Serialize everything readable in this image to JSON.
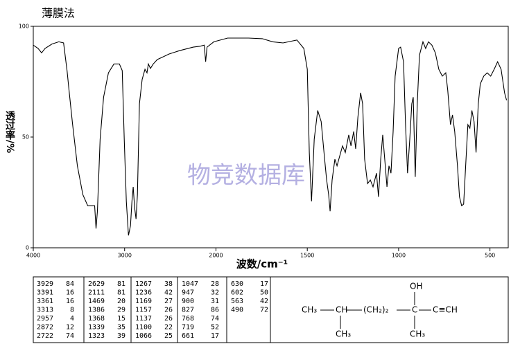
{
  "chart_data": {
    "type": "line",
    "title": "薄膜法",
    "ylabel": "透过率/%",
    "xlabel": "波数/cm⁻¹",
    "watermark": "物竞数据库",
    "xlim": [
      4000,
      400
    ],
    "x_scale_break": 2000,
    "ylim": [
      0,
      100
    ],
    "xticks": [
      4000,
      3000,
      2000,
      1500,
      1000,
      500
    ],
    "yticks": [
      0,
      50,
      100
    ],
    "x": [
      4000,
      3947,
      3909,
      3872,
      3796,
      3721,
      3668,
      3630,
      3608,
      3570,
      3517,
      3457,
      3404,
      3358,
      3328,
      3313,
      3298,
      3268,
      3230,
      3177,
      3117,
      3057,
      3026,
      3004,
      2981,
      2958,
      2936,
      2920,
      2906,
      2890,
      2875,
      2860,
      2838,
      2808,
      2777,
      2755,
      2740,
      2717,
      2687,
      2642,
      2589,
      2513,
      2400,
      2249,
      2174,
      2128,
      2113,
      2098,
      2023,
      1936,
      1822,
      1746,
      1689,
      1633,
      1557,
      1519,
      1500,
      1489,
      1477,
      1462,
      1443,
      1424,
      1405,
      1394,
      1383,
      1375,
      1364,
      1349,
      1337,
      1322,
      1307,
      1292,
      1273,
      1261,
      1246,
      1235,
      1223,
      1208,
      1197,
      1186,
      1170,
      1155,
      1140,
      1121,
      1110,
      1098,
      1087,
      1076,
      1064,
      1053,
      1042,
      1030,
      1019,
      1000,
      989,
      973,
      962,
      951,
      939,
      928,
      920,
      909,
      898,
      886,
      867,
      852,
      837,
      818,
      799,
      780,
      761,
      742,
      731,
      716,
      705,
      693,
      678,
      667,
      655,
      644,
      633,
      621,
      610,
      599,
      587,
      576,
      564,
      553,
      534,
      515,
      496,
      477,
      458,
      439,
      420,
      409
    ],
    "series": [
      {
        "color": "#000000",
        "values": [
          91.5,
          90,
          88,
          90,
          92,
          93,
          92.5,
          80,
          71,
          56,
          37,
          24,
          19,
          19,
          19,
          8.7,
          16.5,
          49,
          68,
          79,
          83,
          83,
          80,
          49,
          21,
          5.6,
          10,
          21,
          27.5,
          18,
          13,
          24,
          65,
          76,
          80.6,
          79,
          83,
          81,
          83,
          85,
          86,
          87.5,
          89,
          90.6,
          91,
          91.5,
          84,
          90.6,
          93,
          94.7,
          94.7,
          94.4,
          93,
          92.5,
          93.8,
          90,
          80.6,
          43,
          21,
          49,
          62,
          57,
          40,
          30.6,
          24,
          16.5,
          30.6,
          40,
          37,
          41.6,
          46,
          43,
          51,
          46,
          52.5,
          44.7,
          59,
          70,
          65,
          40,
          29,
          30.6,
          27.5,
          33.7,
          23,
          40,
          51,
          40,
          27.5,
          37,
          33.7,
          52.5,
          77.5,
          90,
          90.6,
          84,
          55.6,
          33.7,
          49,
          65,
          68,
          32,
          65,
          87,
          93,
          90,
          93,
          91.5,
          88,
          80.6,
          77.5,
          79,
          71,
          55.6,
          60,
          52.5,
          37,
          23,
          19,
          19.7,
          37,
          55.6,
          54,
          62,
          57,
          43,
          65,
          74,
          77.5,
          79,
          77.5,
          80.6,
          84,
          80.6,
          70,
          66.6
        ]
      }
    ]
  },
  "peak_table": {
    "columns": [
      [
        [
          3929,
          84
        ],
        [
          3391,
          16
        ],
        [
          3361,
          16
        ],
        [
          3313,
          8
        ],
        [
          2957,
          4
        ],
        [
          2872,
          12
        ],
        [
          2722,
          74
        ]
      ],
      [
        [
          2629,
          81
        ],
        [
          2111,
          81
        ],
        [
          1469,
          20
        ],
        [
          1386,
          29
        ],
        [
          1368,
          15
        ],
        [
          1339,
          35
        ],
        [
          1323,
          39
        ]
      ],
      [
        [
          1267,
          38
        ],
        [
          1236,
          42
        ],
        [
          1169,
          27
        ],
        [
          1157,
          26
        ],
        [
          1137,
          26
        ],
        [
          1100,
          22
        ],
        [
          1066,
          25
        ]
      ],
      [
        [
          1047,
          28
        ],
        [
          947,
          32
        ],
        [
          900,
          31
        ],
        [
          827,
          86
        ],
        [
          768,
          74
        ],
        [
          719,
          52
        ],
        [
          661,
          17
        ]
      ],
      [
        [
          630,
          17
        ],
        [
          602,
          50
        ],
        [
          563,
          42
        ],
        [
          490,
          72
        ]
      ]
    ]
  },
  "structure": {
    "groups": [
      "CH₃",
      "CH",
      "(CH₂)₂",
      "C",
      "C≡CH",
      "OH",
      "CH₃",
      "CH₃"
    ]
  }
}
